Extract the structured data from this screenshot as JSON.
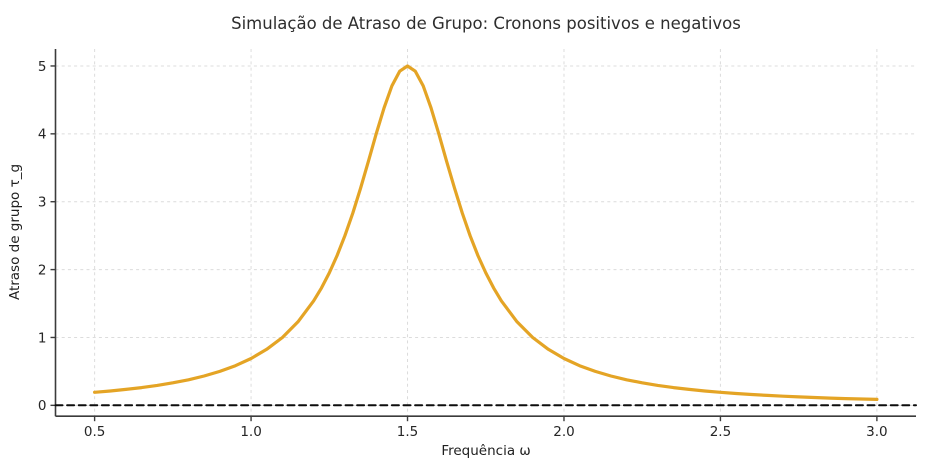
{
  "figure": {
    "background": "#ffffff",
    "text_color": "#262626",
    "spine_color": "#3b3b3b",
    "grid_color": "#dcdcdc"
  },
  "chart_data": {
    "type": "line",
    "title": "Simulação de Atraso de Grupo: Cronons positivos e negativos",
    "xlabel": "Frequência ω",
    "ylabel": "Atraso de grupo τ_g",
    "xlim": [
      0.375,
      3.125
    ],
    "ylim": [
      -0.16,
      5.25
    ],
    "xticks": [
      0.5,
      1.0,
      1.5,
      2.0,
      2.5,
      3.0
    ],
    "xtick_labels": [
      "0.5",
      "1.0",
      "1.5",
      "2.0",
      "2.5",
      "3.0"
    ],
    "yticks": [
      0,
      1,
      2,
      3,
      4,
      5
    ],
    "ytick_labels": [
      "0",
      "1",
      "2",
      "3",
      "4",
      "5"
    ],
    "grid": {
      "show": true,
      "style": "dashed",
      "color": "#dcdcdc"
    },
    "legend": {
      "show": false
    },
    "series": [
      {
        "name": "group-delay-curve",
        "color": "#E4A425",
        "line_width": 3.2,
        "style": "solid",
        "peak": {
          "x": 1.5,
          "y": 5.0
        },
        "x": [
          0.5,
          0.55,
          0.6,
          0.65,
          0.7,
          0.75,
          0.8,
          0.85,
          0.9,
          0.95,
          1.0,
          1.05,
          1.1,
          1.15,
          1.2,
          1.225,
          1.25,
          1.275,
          1.3,
          1.325,
          1.35,
          1.375,
          1.4,
          1.425,
          1.45,
          1.475,
          1.5,
          1.525,
          1.55,
          1.575,
          1.6,
          1.625,
          1.65,
          1.675,
          1.7,
          1.725,
          1.75,
          1.775,
          1.8,
          1.85,
          1.9,
          1.95,
          2.0,
          2.05,
          2.1,
          2.15,
          2.2,
          2.25,
          2.3,
          2.35,
          2.4,
          2.45,
          2.5,
          2.55,
          2.6,
          2.65,
          2.7,
          2.75,
          2.8,
          2.85,
          2.9,
          2.95,
          3.0
        ],
        "y": [
          0.192,
          0.212,
          0.235,
          0.262,
          0.294,
          0.332,
          0.377,
          0.432,
          0.5,
          0.584,
          0.69,
          0.825,
          1.0,
          1.231,
          1.538,
          1.73,
          1.951,
          2.207,
          2.5,
          2.832,
          3.2,
          3.596,
          4.0,
          4.384,
          4.706,
          4.923,
          5.0,
          4.923,
          4.706,
          4.384,
          4.0,
          3.596,
          3.2,
          2.832,
          2.5,
          2.207,
          1.951,
          1.73,
          1.538,
          1.231,
          1.0,
          0.825,
          0.69,
          0.584,
          0.5,
          0.432,
          0.377,
          0.332,
          0.294,
          0.262,
          0.235,
          0.212,
          0.192,
          0.175,
          0.16,
          0.147,
          0.135,
          0.125,
          0.116,
          0.107,
          0.1,
          0.093,
          0.087
        ]
      },
      {
        "name": "zero-reference-line",
        "color": "#0d0d0d",
        "line_width": 2,
        "style": "dashed",
        "x": [
          0.375,
          3.125
        ],
        "y": [
          0,
          0
        ]
      }
    ]
  }
}
